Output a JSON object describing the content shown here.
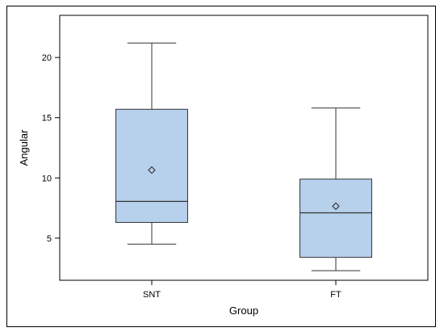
{
  "chart_data": {
    "type": "box",
    "xlabel": "Group",
    "ylabel": "Angular",
    "ylim": [
      1.5,
      23.5
    ],
    "yticks": [
      5,
      10,
      15,
      20
    ],
    "grid": false,
    "categories": [
      "SNT",
      "FT"
    ],
    "boxes": [
      {
        "category": "SNT",
        "min": 4.5,
        "q1": 6.3,
        "median": 8.05,
        "q3": 15.7,
        "max": 21.2,
        "mean": 10.65
      },
      {
        "category": "FT",
        "min": 2.3,
        "q1": 3.4,
        "median": 7.1,
        "q3": 9.9,
        "max": 15.8,
        "mean": 7.65
      }
    ],
    "colors": {
      "box_fill": "#b7d1ec",
      "line": "#333333"
    }
  }
}
